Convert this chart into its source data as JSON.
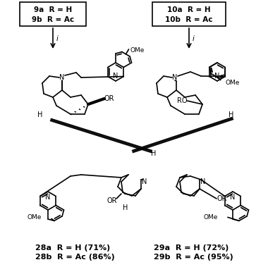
{
  "title": "",
  "background_color": "#ffffff",
  "box1_text": "9a  R = H\n9b  R = Ac",
  "box2_text": "10a  R = H\n10b  R = Ac",
  "label1_line1": "28a  R = H (71%)",
  "label1_line2": "28b  R = Ac (86%)",
  "label2_line1": "29a  R = H (72%)",
  "label2_line2": "29b  R = Ac (95%)",
  "reagent_label": "i",
  "figsize": [
    3.8,
    3.79
  ],
  "dpi": 100
}
